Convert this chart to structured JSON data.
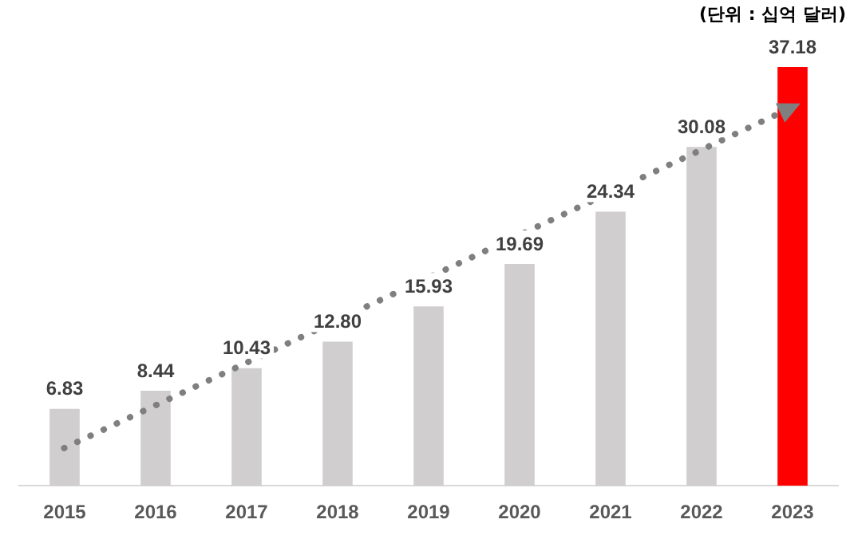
{
  "chart_data": {
    "type": "bar",
    "categories": [
      "2015",
      "2016",
      "2017",
      "2018",
      "2019",
      "2020",
      "2021",
      "2022",
      "2023"
    ],
    "values": [
      6.83,
      8.44,
      10.43,
      12.8,
      15.93,
      19.69,
      24.34,
      30.08,
      37.18
    ],
    "colors": [
      "#d0cece",
      "#d0cece",
      "#d0cece",
      "#d0cece",
      "#d0cece",
      "#d0cece",
      "#d0cece",
      "#d0cece",
      "#ff0000"
    ],
    "value_labels": [
      "6.83",
      "8.44",
      "10.43",
      "12.80",
      "15.93",
      "19.69",
      "24.34",
      "30.08",
      "37.18"
    ],
    "annotations": [
      "(단위 : 십억 달러)"
    ]
  }
}
